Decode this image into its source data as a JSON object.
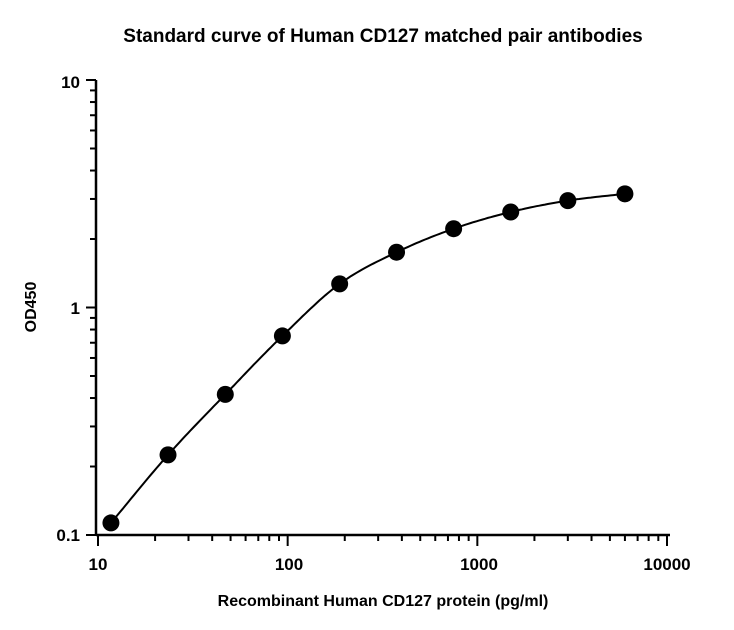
{
  "chart_data": {
    "type": "scatter",
    "title": "Standard curve of Human CD127 matched pair antibodies",
    "xlabel": "Recombinant Human CD127 protein (pg/ml)",
    "ylabel": "OD450",
    "x_scale": "log",
    "y_scale": "log",
    "xlim": [
      10,
      10000
    ],
    "ylim": [
      0.1,
      10
    ],
    "x_ticks": [
      "10",
      "100",
      "1000",
      "10000"
    ],
    "y_ticks": [
      "0.1",
      "1",
      "10"
    ],
    "grid": false,
    "legend": "none",
    "fit_curve": true,
    "marker_color": "#000000",
    "series": [
      {
        "x": [
          11.7,
          23.4,
          46.9,
          93.8,
          188,
          375,
          750,
          1500,
          3000,
          6000
        ],
        "y": [
          0.113,
          0.225,
          0.415,
          0.75,
          1.27,
          1.75,
          2.22,
          2.63,
          2.95,
          3.16
        ]
      }
    ]
  }
}
